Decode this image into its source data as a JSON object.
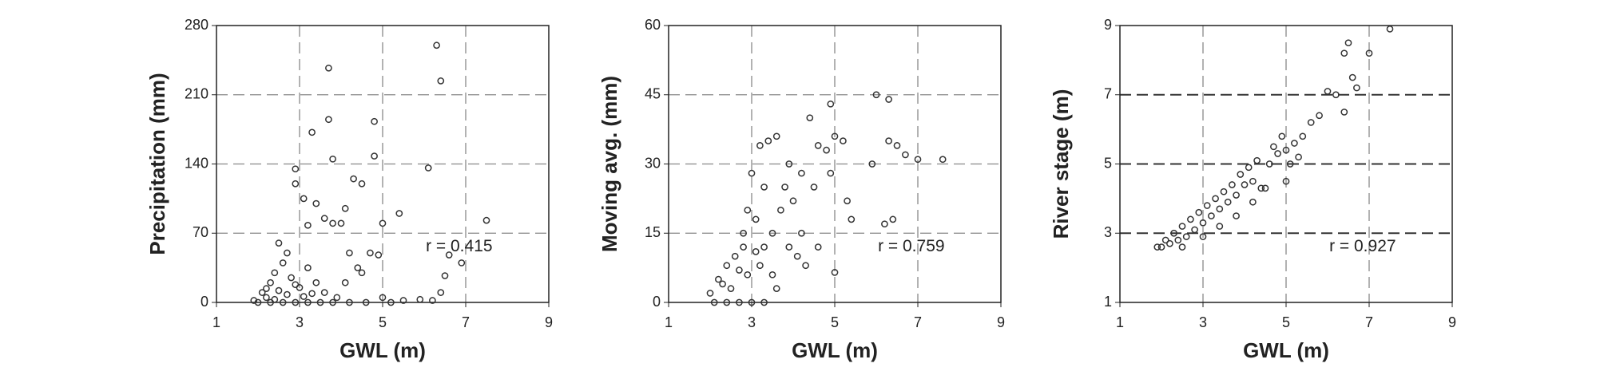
{
  "chart_data": [
    {
      "type": "scatter",
      "xlabel": "GWL (m)",
      "ylabel": "Precipitation (mm)",
      "annotation": "r = 0.415",
      "xlim": [
        1,
        9
      ],
      "xticks": [
        1,
        3,
        5,
        7,
        9
      ],
      "ylim": [
        0,
        280
      ],
      "yticks": [
        0,
        70,
        140,
        210,
        280
      ],
      "grid": true,
      "color": "#333333",
      "x": [
        3.7,
        6.3,
        6.4,
        3.7,
        4.8,
        3.3,
        3.8,
        4.8,
        6.1,
        2.9,
        2.9,
        4.3,
        4.5,
        4.1,
        5.4,
        7.5,
        5.0,
        3.8,
        3.6,
        3.2,
        3.4,
        3.1,
        4.0,
        6.6,
        6.9,
        6.5,
        6.4,
        6.2,
        5.9,
        5.5,
        5.0,
        4.5,
        4.2,
        4.7,
        4.9,
        4.4,
        2.5,
        2.7,
        2.3,
        2.1,
        1.9,
        2.2,
        2.4,
        2.6,
        2.8,
        3.0,
        3.2,
        3.4,
        3.6,
        3.9,
        4.1,
        2.0,
        2.3,
        2.6,
        2.9,
        3.2,
        3.5,
        3.8,
        4.2,
        4.6,
        5.2,
        2.5,
        2.7,
        2.9,
        3.1,
        3.3,
        2.2,
        2.4
      ],
      "values": [
        237,
        260,
        224,
        185,
        183,
        172,
        145,
        148,
        136,
        135,
        120,
        125,
        120,
        95,
        90,
        83,
        80,
        80,
        85,
        78,
        100,
        105,
        80,
        48,
        40,
        27,
        10,
        2,
        3,
        2,
        5,
        30,
        50,
        50,
        48,
        35,
        60,
        50,
        20,
        10,
        2,
        5,
        30,
        40,
        25,
        15,
        35,
        20,
        10,
        5,
        20,
        0,
        0,
        0,
        0,
        0,
        0,
        0,
        0,
        0,
        0,
        12,
        8,
        18,
        6,
        9,
        14,
        3
      ]
    },
    {
      "type": "scatter",
      "xlabel": "GWL (m)",
      "ylabel": "Moving avg. (mm)",
      "annotation": "r = 0.759",
      "xlim": [
        1,
        9
      ],
      "xticks": [
        1,
        3,
        5,
        7,
        9
      ],
      "ylim": [
        0,
        60
      ],
      "yticks": [
        0,
        15,
        30,
        45,
        60
      ],
      "grid": true,
      "color": "#333333",
      "x": [
        6.0,
        6.3,
        4.4,
        4.9,
        5.2,
        5.0,
        4.6,
        4.8,
        3.6,
        3.4,
        3.2,
        3.9,
        4.2,
        4.5,
        4.0,
        3.7,
        3.8,
        4.9,
        5.3,
        5.4,
        6.2,
        6.4,
        6.5,
        6.7,
        7.0,
        7.6,
        6.3,
        5.9,
        5.0,
        4.1,
        4.3,
        3.5,
        3.3,
        3.1,
        2.9,
        2.8,
        2.6,
        2.4,
        2.2,
        2.0,
        2.1,
        2.4,
        2.7,
        3.0,
        3.3,
        3.6,
        2.5,
        2.9,
        3.2,
        3.5,
        3.0,
        3.3,
        2.8,
        4.6,
        4.2,
        3.9,
        2.3,
        2.7,
        3.1
      ],
      "values": [
        45,
        44,
        40,
        43,
        35,
        36,
        34,
        33,
        36,
        35,
        34,
        30,
        28,
        25,
        22,
        20,
        25,
        28,
        22,
        18,
        17,
        18,
        34,
        32,
        31,
        31,
        35,
        30,
        6.5,
        10,
        8,
        15,
        12,
        18,
        20,
        15,
        10,
        8,
        5,
        2,
        0,
        0,
        0,
        0,
        0,
        3,
        3,
        6,
        8,
        6,
        28,
        25,
        12,
        12,
        15,
        12,
        4,
        7,
        11
      ]
    },
    {
      "type": "scatter",
      "xlabel": "GWL (m)",
      "ylabel": "River stage (m)",
      "annotation": "r = 0.927",
      "xlim": [
        1,
        9
      ],
      "xticks": [
        1,
        3,
        5,
        7,
        9
      ],
      "ylim": [
        1,
        9
      ],
      "yticks": [
        1,
        3,
        5,
        7,
        9
      ],
      "grid": true,
      "color": "#333333",
      "x": [
        7.5,
        7.0,
        6.5,
        6.4,
        6.6,
        6.7,
        6.4,
        6.2,
        6.0,
        5.8,
        5.6,
        5.4,
        5.2,
        5.0,
        5.1,
        4.8,
        4.6,
        4.5,
        4.2,
        4.0,
        3.8,
        3.6,
        3.4,
        3.2,
        3.0,
        2.8,
        2.6,
        2.4,
        2.2,
        2.0,
        1.9,
        2.1,
        2.3,
        2.5,
        2.7,
        2.9,
        3.1,
        3.3,
        3.5,
        3.7,
        3.9,
        4.1,
        4.3,
        4.7,
        4.9,
        3.0,
        3.4,
        3.8,
        4.2,
        2.5,
        5.0,
        5.3,
        4.4
      ],
      "values": [
        8.9,
        8.2,
        8.5,
        8.2,
        7.5,
        7.2,
        6.5,
        7.0,
        7.1,
        6.4,
        6.2,
        5.8,
        5.6,
        5.4,
        5.0,
        5.3,
        5.0,
        4.3,
        4.5,
        4.4,
        4.1,
        3.9,
        3.7,
        3.5,
        3.3,
        3.1,
        2.9,
        2.8,
        2.7,
        2.6,
        2.6,
        2.8,
        3.0,
        3.2,
        3.4,
        3.6,
        3.8,
        4.0,
        4.2,
        4.4,
        4.7,
        4.9,
        5.1,
        5.5,
        5.8,
        2.9,
        3.2,
        3.5,
        3.9,
        2.6,
        4.5,
        5.2,
        4.3
      ]
    }
  ]
}
